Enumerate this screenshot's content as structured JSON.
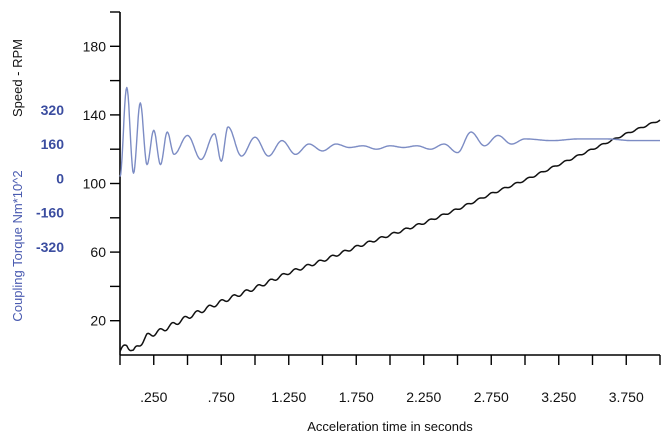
{
  "chart_data": {
    "type": "line",
    "xlabel": "Acceleration time in seconds",
    "ylabel_speed": "Speed - RPM",
    "ylabel_torque": "Coupling Torque Nm*10^2",
    "xlim": [
      0,
      4.0
    ],
    "ylim_speed": [
      0,
      200
    ],
    "x_tick_values": [
      0.25,
      0.75,
      1.25,
      1.75,
      2.25,
      2.75,
      3.25,
      3.75
    ],
    "x_tick_labels": [
      ".250",
      ".750",
      "1.250",
      "1.750",
      "2.250",
      "2.750",
      "3.250",
      "3.750"
    ],
    "y_tick_values": [
      20,
      60,
      100,
      140,
      180
    ],
    "y_tick_labels": [
      "20",
      "60",
      "100",
      "140",
      "180"
    ],
    "y2_tick_values": [
      -320,
      -160,
      0,
      160,
      320
    ],
    "y2_tick_labels": [
      "-320",
      "-160",
      "0",
      "160",
      "320"
    ],
    "torque_axis_map": {
      "torque_zero_at_speed": 103,
      "torque_per_speed_unit": 8.0
    },
    "grid": false,
    "series": [
      {
        "name": "Speed",
        "color": "#111111",
        "x": [
          0.0,
          0.05,
          0.1,
          0.2,
          0.3,
          0.5,
          0.75,
          1.0,
          1.25,
          1.5,
          1.75,
          2.0,
          2.25,
          2.5,
          2.75,
          3.0,
          3.25,
          3.5,
          3.75,
          4.0
        ],
        "y": [
          2,
          6,
          2,
          11,
          14,
          22,
          31,
          39,
          48,
          55,
          63,
          70,
          77,
          85,
          94,
          102,
          111,
          120,
          129,
          137
        ]
      },
      {
        "name": "Coupling Torque",
        "color": "#7c8cc4",
        "x": [
          0.0,
          0.05,
          0.1,
          0.15,
          0.2,
          0.25,
          0.3,
          0.35,
          0.4,
          0.5,
          0.6,
          0.7,
          0.75,
          0.8,
          0.9,
          1.0,
          1.1,
          1.2,
          1.3,
          1.4,
          1.5,
          1.6,
          1.7,
          1.8,
          1.9,
          2.0,
          2.1,
          2.2,
          2.3,
          2.4,
          2.5,
          2.6,
          2.7,
          2.8,
          2.9,
          3.0,
          3.2,
          3.4,
          3.6,
          3.8,
          4.0
        ],
        "y": [
          104,
          156,
          106,
          147,
          111,
          131,
          111,
          130,
          117,
          128,
          114,
          129,
          113,
          133,
          116,
          127,
          116,
          125,
          117,
          123,
          119,
          123,
          121,
          122,
          120,
          122,
          121,
          122,
          120,
          123,
          118,
          130,
          122,
          128,
          123,
          126,
          125,
          126,
          126,
          125,
          125
        ]
      }
    ]
  }
}
